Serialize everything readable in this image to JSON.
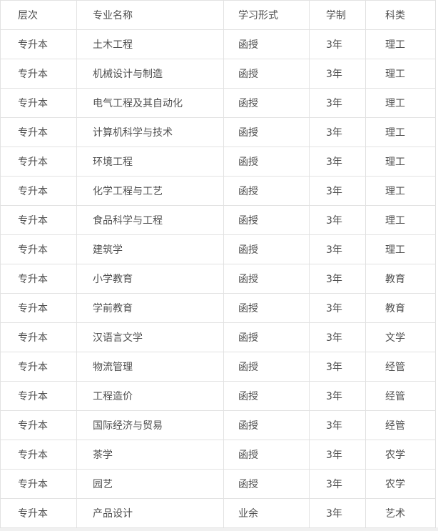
{
  "table": {
    "columns": [
      {
        "key": "level",
        "label": "层次"
      },
      {
        "key": "major",
        "label": "专业名称"
      },
      {
        "key": "study_form",
        "label": "学习形式"
      },
      {
        "key": "duration",
        "label": "学制"
      },
      {
        "key": "category",
        "label": "科类"
      }
    ],
    "rows": [
      [
        "专升本",
        "土木工程",
        "函授",
        "3年",
        "理工"
      ],
      [
        "专升本",
        "机械设计与制造",
        "函授",
        "3年",
        "理工"
      ],
      [
        "专升本",
        "电气工程及其自动化",
        "函授",
        "3年",
        "理工"
      ],
      [
        "专升本",
        "计算机科学与技术",
        "函授",
        "3年",
        "理工"
      ],
      [
        "专升本",
        "环境工程",
        "函授",
        "3年",
        "理工"
      ],
      [
        "专升本",
        "化学工程与工艺",
        "函授",
        "3年",
        "理工"
      ],
      [
        "专升本",
        "食品科学与工程",
        "函授",
        "3年",
        "理工"
      ],
      [
        "专升本",
        "建筑学",
        "函授",
        "3年",
        "理工"
      ],
      [
        "专升本",
        "小学教育",
        "函授",
        "3年",
        "教育"
      ],
      [
        "专升本",
        "学前教育",
        "函授",
        "3年",
        "教育"
      ],
      [
        "专升本",
        "汉语言文学",
        "函授",
        "3年",
        "文学"
      ],
      [
        "专升本",
        "物流管理",
        "函授",
        "3年",
        "经管"
      ],
      [
        "专升本",
        "工程造价",
        "函授",
        "3年",
        "经管"
      ],
      [
        "专升本",
        "国际经济与贸易",
        "函授",
        "3年",
        "经管"
      ],
      [
        "专升本",
        "茶学",
        "函授",
        "3年",
        "农学"
      ],
      [
        "专升本",
        "园艺",
        "函授",
        "3年",
        "农学"
      ],
      [
        "专升本",
        "产品设计",
        "业余",
        "3年",
        "艺术"
      ]
    ]
  },
  "colors": {
    "border": "#e2e2e2",
    "text": "#4f4f4f",
    "page_background": "#f0f0f0",
    "table_background": "#ffffff"
  }
}
